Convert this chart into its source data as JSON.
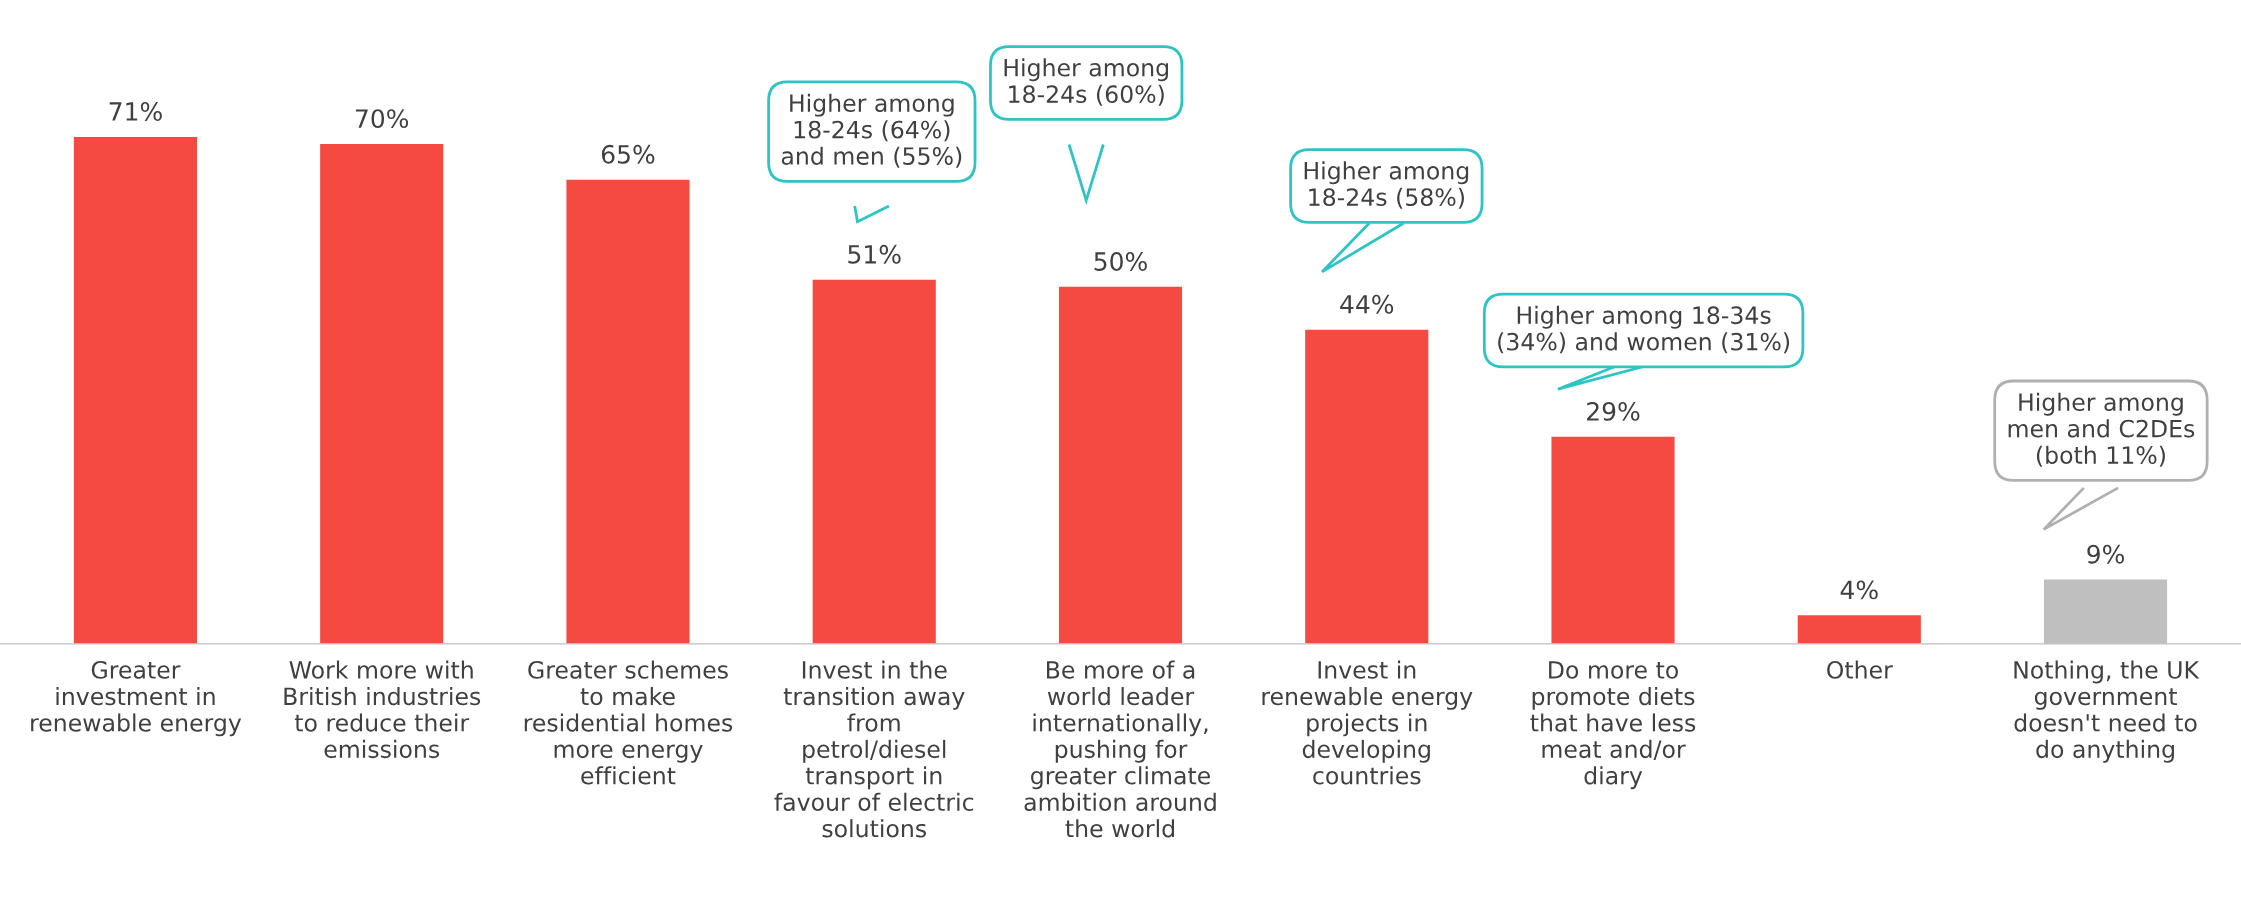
{
  "chart_data": {
    "type": "bar",
    "categories": [
      "Greater\ninvestment in\nrenewable energy",
      "Work more with\nBritish industries\nto reduce their\nemissions",
      "Greater schemes\nto make\nresidential homes\nmore energy\nefficient",
      "Invest in the\ntransition away\nfrom\npetrol/diesel\ntransport in\nfavour of electric\nsolutions",
      "Be more of a\nworld leader\ninternationally,\npushing for\ngreater climate\nambition around\nthe world",
      "Invest in\nrenewable energy\nprojects in\ndeveloping\ncountries",
      "Do more to\npromote diets\nthat have less\nmeat and/or\ndiary",
      "Other",
      "Nothing, the UK\ngovernment\ndoesn't need to\ndo anything"
    ],
    "values": [
      71,
      70,
      65,
      51,
      50,
      44,
      29,
      4,
      9
    ],
    "value_labels": [
      "71%",
      "70%",
      "65%",
      "51%",
      "50%",
      "44%",
      "29%",
      "4%",
      "9%"
    ],
    "colors": [
      "#f44a41",
      "#f44a41",
      "#f44a41",
      "#f44a41",
      "#f44a41",
      "#f44a41",
      "#f44a41",
      "#f44a41",
      "#bfbfbf"
    ],
    "annotations": [
      "Higher among\n18-24s (64%)\nand men (55%)",
      "Higher among\n18-24s (60%)",
      "Higher among\n18-24s (58%)",
      "Higher among 18-34s\n(34%) and women (31%)",
      "Higher among\nmen and C2DEs\n(both 11%)"
    ],
    "grid": false,
    "legend": false
  }
}
